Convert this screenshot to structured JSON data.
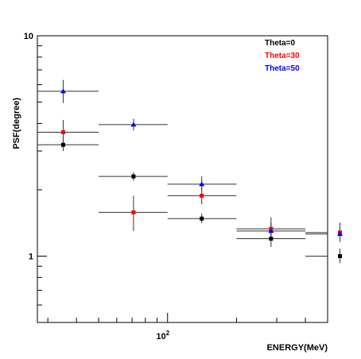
{
  "chart_data": {
    "type": "scatter",
    "xlabel": "ENERGY(MeV)",
    "ylabel": "PSF(degree)",
    "x_scale": "log",
    "y_scale": "log",
    "xlim": [
      27,
      500
    ],
    "ylim": [
      0.5,
      10
    ],
    "grid": false,
    "legend_position": "top-right",
    "x_tick_labels": [
      {
        "value": 100,
        "base": "10",
        "exp": "2"
      }
    ],
    "y_tick_labels": [
      {
        "value": 1,
        "label": "1"
      },
      {
        "value": 10,
        "label": "10"
      }
    ],
    "series": [
      {
        "name": "Theta=0",
        "color": "#000000",
        "marker": "square",
        "points": [
          {
            "x": 35,
            "y": 3.2,
            "xlo": 20,
            "xhi": 50,
            "ylo": 3.0,
            "yhi": 3.45
          },
          {
            "x": 71,
            "y": 2.3,
            "xlo": 50,
            "xhi": 100,
            "ylo": 2.2,
            "yhi": 2.4
          },
          {
            "x": 141,
            "y": 1.48,
            "xlo": 100,
            "xhi": 200,
            "ylo": 1.41,
            "yhi": 1.56
          },
          {
            "x": 283,
            "y": 1.2,
            "xlo": 200,
            "xhi": 400,
            "ylo": 1.1,
            "yhi": 1.32
          },
          {
            "x": 566,
            "y": 1.0,
            "xlo": 400,
            "xhi": 800,
            "ylo": 0.93,
            "yhi": 1.08
          }
        ]
      },
      {
        "name": "Theta=30",
        "color": "#ff0000",
        "marker": "square",
        "points": [
          {
            "x": 35,
            "y": 3.65,
            "xlo": 20,
            "xhi": 50,
            "ylo": 3.25,
            "yhi": 4.15
          },
          {
            "x": 71,
            "y": 1.58,
            "xlo": 50,
            "xhi": 100,
            "ylo": 1.3,
            "yhi": 1.88
          },
          {
            "x": 141,
            "y": 1.88,
            "xlo": 100,
            "xhi": 200,
            "ylo": 1.72,
            "yhi": 2.05
          },
          {
            "x": 283,
            "y": 1.33,
            "xlo": 200,
            "xhi": 400,
            "ylo": 1.2,
            "yhi": 1.5
          },
          {
            "x": 566,
            "y": 1.28,
            "xlo": 400,
            "xhi": 800,
            "ylo": 1.16,
            "yhi": 1.42
          }
        ]
      },
      {
        "name": "Theta=50",
        "color": "#0000ff",
        "marker": "triangle",
        "points": [
          {
            "x": 35,
            "y": 5.6,
            "xlo": 20,
            "xhi": 50,
            "ylo": 4.95,
            "yhi": 6.3
          },
          {
            "x": 71,
            "y": 3.95,
            "xlo": 50,
            "xhi": 100,
            "ylo": 3.72,
            "yhi": 4.2
          },
          {
            "x": 141,
            "y": 2.12,
            "xlo": 100,
            "xhi": 200,
            "ylo": 1.98,
            "yhi": 2.3
          },
          {
            "x": 283,
            "y": 1.3,
            "xlo": 200,
            "xhi": 400,
            "ylo": 1.2,
            "yhi": 1.42
          },
          {
            "x": 566,
            "y": 1.26,
            "xlo": 400,
            "xhi": 800,
            "ylo": 1.16,
            "yhi": 1.38
          }
        ]
      }
    ]
  }
}
